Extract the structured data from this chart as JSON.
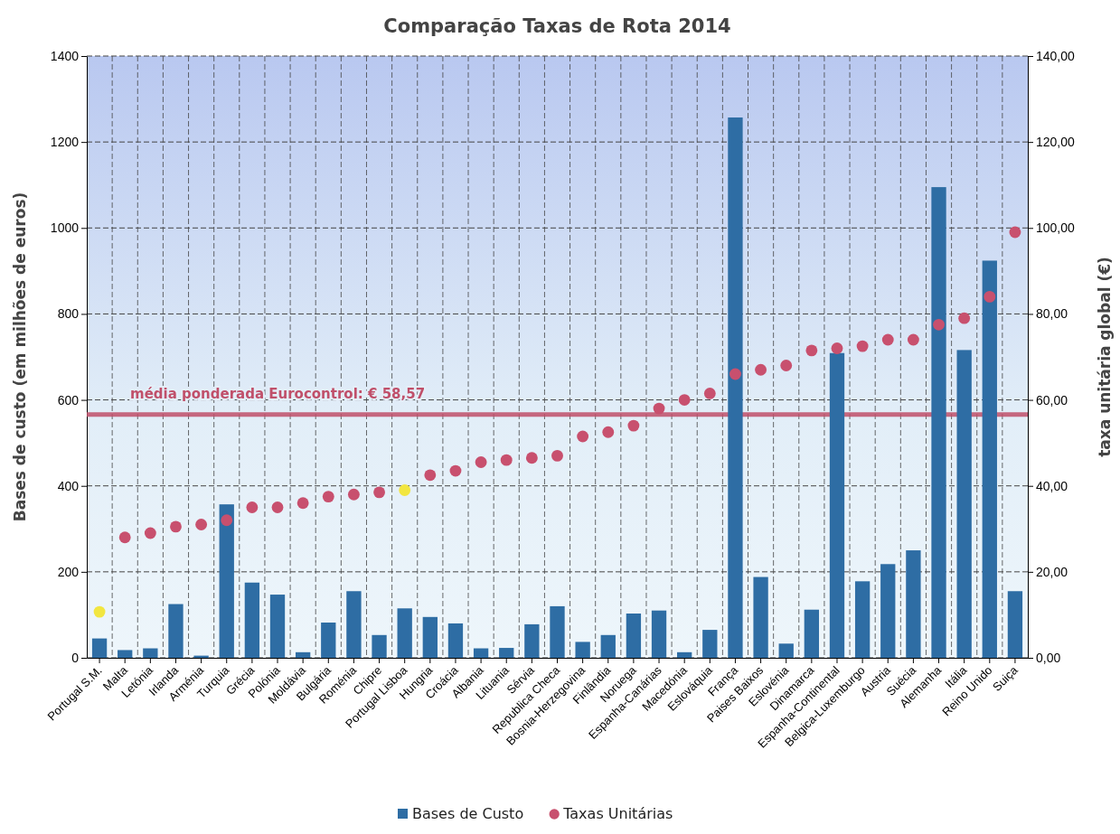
{
  "chart_data": {
    "type": "bar",
    "title": "Comparação Taxas de Rota 2014",
    "ylabel": "Bases de custo (em milhões de euros)",
    "y2label": "taxa unitária global (€)",
    "categories": [
      "Portugal S.M.",
      "Malta",
      "Letónia",
      "Irlanda",
      "Arménia",
      "Turquia",
      "Grécia",
      "Polónia",
      "Moldávia",
      "Bulgária",
      "Roménia",
      "Chipre",
      "Portugal Lisboa",
      "Hungria",
      "Croácia",
      "Albania",
      "Lituania",
      "Sérvia",
      "Republica Checa",
      "Bosnia-Herzegovina",
      "Finlândia",
      "Noruega",
      "Espanha-Canárias",
      "Macedónia",
      "Eslováquia",
      "França",
      "Paises Baixos",
      "Eslovénia",
      "Dinamarca",
      "Espanha-Continental",
      "Belgica-Luxemburgo",
      "Austria",
      "Suécia",
      "Alemanha",
      "Itália",
      "Reino Unido",
      "Suiça"
    ],
    "series": [
      {
        "name": "Bases de Custo",
        "color": "#2e6da4",
        "values": [
          45,
          18,
          22,
          125,
          5,
          357,
          175,
          147,
          13,
          82,
          155,
          53,
          115,
          95,
          80,
          22,
          23,
          78,
          120,
          37,
          53,
          103,
          110,
          13,
          65,
          1257,
          188,
          33,
          112,
          709,
          178,
          218,
          250,
          1095,
          716,
          924,
          155
        ]
      },
      {
        "name": "Taxas Unitárias",
        "type": "scatter",
        "axis": "y2",
        "color": "#c8506e",
        "marker": "circle",
        "colors": [
          "#f2e640",
          "#c8506e",
          "#c8506e",
          "#c8506e",
          "#c8506e",
          "#c8506e",
          "#c8506e",
          "#c8506e",
          "#c8506e",
          "#c8506e",
          "#c8506e",
          "#c8506e",
          "#f2e640",
          "#c8506e",
          "#c8506e",
          "#c8506e",
          "#c8506e",
          "#c8506e",
          "#c8506e",
          "#c8506e",
          "#c8506e",
          "#c8506e",
          "#c8506e",
          "#c8506e",
          "#c8506e",
          "#c8506e",
          "#c8506e",
          "#c8506e",
          "#c8506e",
          "#c8506e",
          "#c8506e",
          "#c8506e",
          "#c8506e",
          "#c8506e",
          "#c8506e",
          "#c8506e",
          "#c8506e"
        ],
        "values": [
          10.7,
          28,
          29,
          30.5,
          31,
          32,
          35,
          35,
          36,
          37.5,
          38,
          38.5,
          39,
          42.5,
          43.5,
          45.5,
          46,
          46.5,
          47,
          51.5,
          52.5,
          54,
          58,
          60,
          61.5,
          66,
          67,
          68,
          71.5,
          72,
          72.5,
          74,
          74,
          77.5,
          79,
          84,
          99
        ]
      }
    ],
    "ylim": [
      0,
      1400
    ],
    "yticks": [
      0,
      200,
      400,
      600,
      800,
      1000,
      1200,
      1400
    ],
    "y2lim": [
      0,
      140
    ],
    "y2ticks": [
      {
        "value": 0,
        "label": "0,00"
      },
      {
        "value": 20,
        "label": "20,00"
      },
      {
        "value": 40,
        "label": "40,00"
      },
      {
        "value": 60,
        "label": "60,00"
      },
      {
        "value": 80,
        "label": "80,00"
      },
      {
        "value": 100,
        "label": "100,00"
      },
      {
        "value": 120,
        "label": "120,00"
      },
      {
        "value": 140,
        "label": "140,00"
      }
    ],
    "ref_lines": [
      {
        "axis": "y2",
        "value": 56.6,
        "label": "média ponderada Eurocontrol: € 58,57",
        "color": "#c0506a"
      }
    ],
    "grid": true,
    "legend": "bottom"
  }
}
